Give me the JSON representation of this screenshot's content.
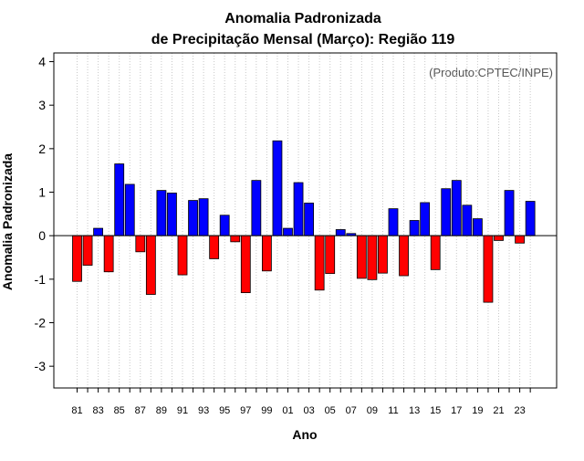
{
  "chart_data": {
    "type": "bar",
    "title_line1": "Anomalia Padronizada",
    "title_line2": "de Precipitação Mensal (Março): Região 119",
    "xlabel": "Ano",
    "ylabel": "Anomalia Padronizada",
    "annotation": "(Produto:CPTEC/INPE)",
    "ylim": [
      -3.5,
      4.2
    ],
    "yticks": [
      "-3",
      "-2",
      "-1",
      "0",
      "1",
      "2",
      "3",
      "4"
    ],
    "grid": true,
    "colors": {
      "positive": "#0000ff",
      "negative": "#ff0000",
      "axis": "#000000",
      "grid": "#c8c8c8",
      "annotation": "#555555"
    },
    "categories": [
      "81",
      "82",
      "83",
      "84",
      "85",
      "86",
      "87",
      "88",
      "89",
      "90",
      "91",
      "92",
      "93",
      "94",
      "95",
      "96",
      "97",
      "98",
      "99",
      "00",
      "01",
      "02",
      "03",
      "04",
      "05",
      "06",
      "07",
      "08",
      "09",
      "10",
      "11",
      "12",
      "13",
      "14",
      "15",
      "16",
      "17",
      "18",
      "19",
      "20",
      "21",
      "22",
      "23",
      "24"
    ],
    "xtick_labels": [
      "81",
      "83",
      "85",
      "87",
      "89",
      "91",
      "93",
      "95",
      "97",
      "99",
      "01",
      "03",
      "05",
      "07",
      "09",
      "11",
      "13",
      "15",
      "17",
      "19",
      "21",
      "23"
    ],
    "values": [
      -1.05,
      -0.68,
      0.17,
      -0.83,
      1.65,
      1.18,
      -0.37,
      -1.35,
      1.04,
      0.98,
      -0.9,
      0.81,
      0.85,
      -0.53,
      0.47,
      -0.14,
      -1.31,
      1.27,
      -0.81,
      2.18,
      0.17,
      1.22,
      0.75,
      -1.25,
      -0.87,
      0.14,
      0.05,
      -0.98,
      -1.01,
      -0.86,
      0.62,
      -0.92,
      0.35,
      0.76,
      -0.78,
      1.08,
      1.27,
      0.7,
      0.39,
      -1.53,
      -0.11,
      1.04,
      -0.17,
      0.79
    ]
  }
}
